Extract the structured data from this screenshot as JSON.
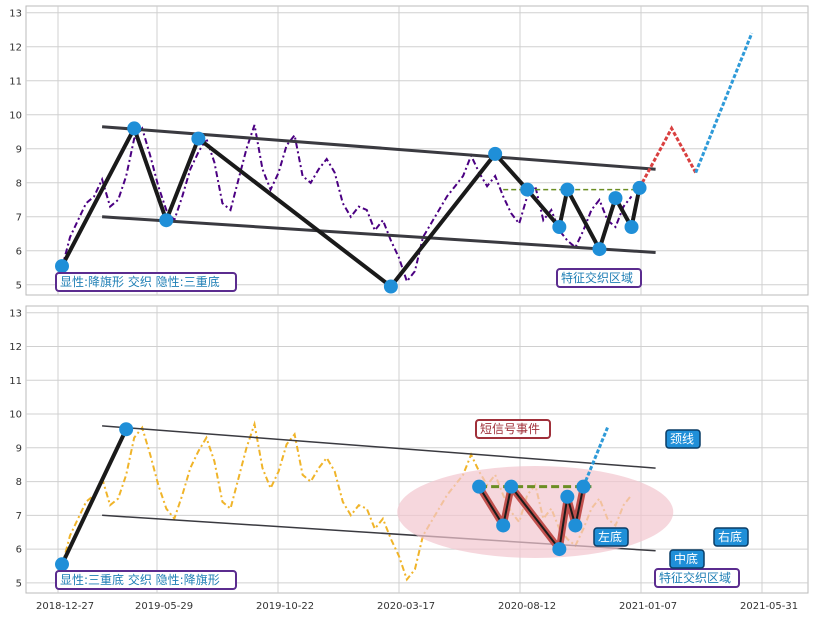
{
  "colors": {
    "panel_bg": "#ffffff",
    "grid": "#d0d0d0",
    "border": "#bbbbbb",
    "series_top": "#4b0082",
    "series_bottom": "#f0b429",
    "pattern_line": "#1a1a1a",
    "channel_line": "#3a3a40",
    "marker": "#1f8fd8",
    "neckline_top": "#6b8e23",
    "neckline_bottom": "#6b8e23",
    "triple_bottom_fill": "#c0504d",
    "projection_up": "#2e9ad8",
    "projection_red": "#d94040",
    "ellipse": "#f2c6cf",
    "label_purple": "#5b2c8f",
    "label_teal": "#1f7fb5",
    "callout_fill": "#1f8fd8",
    "callout_red": "#a0303a"
  },
  "chart_data": [
    {
      "type": "line",
      "panel": "top",
      "ylim": [
        4.7,
        13.2
      ],
      "y_ticks": [
        5,
        6,
        7,
        8,
        9,
        10,
        11,
        12,
        13
      ],
      "x_ticks": [],
      "series": [
        {
          "values": [
            5.5,
            6.4,
            6.9,
            7.4,
            7.6,
            8.1,
            7.3,
            7.5,
            8.2,
            9.3,
            9.6,
            8.8,
            7.9,
            7.2,
            6.9,
            7.6,
            8.4,
            8.9,
            9.3,
            8.6,
            7.4,
            7.2,
            8.1,
            9.0,
            9.7,
            8.4,
            7.8,
            8.3,
            9.1,
            9.4,
            8.2,
            8.0,
            8.4,
            8.7,
            8.3,
            7.4,
            7.0,
            7.3,
            7.2,
            6.6,
            6.9,
            6.3,
            5.8,
            5.1,
            5.4,
            6.4,
            6.8,
            7.2,
            7.6,
            7.9,
            8.2,
            8.8,
            8.3,
            7.9,
            8.2,
            7.6,
            7.1,
            6.8,
            7.6,
            7.9,
            6.9,
            7.2,
            6.6,
            6.3,
            6.1,
            6.6,
            7.2,
            7.5,
            6.9,
            6.7,
            7.3,
            7.6
          ]
        }
      ],
      "pattern": {
        "zigzag": [
          [
            0,
            5.55
          ],
          [
            9,
            9.6
          ],
          [
            13,
            6.9
          ],
          [
            17,
            9.3
          ],
          [
            41,
            4.95
          ],
          [
            54,
            8.85
          ],
          [
            58,
            7.8
          ],
          [
            62,
            6.7
          ],
          [
            63,
            7.8
          ],
          [
            67,
            6.05
          ],
          [
            69,
            7.55
          ],
          [
            71,
            6.7
          ],
          [
            72,
            7.85
          ]
        ],
        "channel_upper": [
          [
            5,
            9.65
          ],
          [
            74,
            8.4
          ]
        ],
        "channel_lower": [
          [
            5,
            7.0
          ],
          [
            74,
            5.95
          ]
        ],
        "neckline": [
          [
            55,
            7.8
          ],
          [
            72,
            7.8
          ]
        ],
        "projection_red": [
          [
            72,
            7.85
          ],
          [
            76,
            9.6
          ],
          [
            79,
            8.3
          ]
        ],
        "projection_blue": [
          [
            79,
            8.3
          ],
          [
            86,
            12.4
          ]
        ],
        "markers": [
          [
            0,
            5.55
          ],
          [
            9,
            9.6
          ],
          [
            13,
            6.9
          ],
          [
            17,
            9.3
          ],
          [
            41,
            4.95
          ],
          [
            54,
            8.85
          ],
          [
            58,
            7.8
          ],
          [
            62,
            6.7
          ],
          [
            63,
            7.8
          ],
          [
            67,
            6.05
          ],
          [
            69,
            7.55
          ],
          [
            71,
            6.7
          ],
          [
            72,
            7.85
          ]
        ]
      },
      "annotations": {
        "bottom_left_label": "显性:降旗形 交织 隐性:三重底",
        "zone_label": "特征交织区域"
      }
    },
    {
      "type": "line",
      "panel": "bottom",
      "ylim": [
        4.7,
        13.2
      ],
      "y_ticks": [
        5,
        6,
        7,
        8,
        9,
        10,
        11,
        12,
        13
      ],
      "x_ticks": [
        "2018-12-27",
        "2019-05-29",
        "2019-10-22",
        "2020-03-17",
        "2020-08-12",
        "2021-01-07",
        "2021-05-31"
      ],
      "series": [
        {
          "values": [
            5.5,
            6.4,
            6.9,
            7.4,
            7.6,
            8.1,
            7.3,
            7.5,
            8.2,
            9.3,
            9.6,
            8.8,
            7.9,
            7.2,
            6.9,
            7.6,
            8.4,
            8.9,
            9.3,
            8.6,
            7.4,
            7.2,
            8.1,
            9.0,
            9.7,
            8.4,
            7.8,
            8.3,
            9.1,
            9.4,
            8.2,
            8.0,
            8.4,
            8.7,
            8.3,
            7.4,
            7.0,
            7.3,
            7.2,
            6.6,
            6.9,
            6.3,
            5.8,
            5.1,
            5.4,
            6.4,
            6.8,
            7.2,
            7.6,
            7.9,
            8.2,
            8.8,
            8.3,
            7.9,
            8.2,
            7.6,
            7.1,
            6.8,
            7.6,
            7.9,
            6.9,
            7.2,
            6.6,
            6.3,
            6.1,
            6.6,
            7.2,
            7.5,
            6.9,
            6.7,
            7.3,
            7.6
          ]
        }
      ],
      "pattern": {
        "bull_leg": [
          [
            0,
            5.55
          ],
          [
            8,
            9.55
          ]
        ],
        "channel_upper": [
          [
            5,
            9.65
          ],
          [
            74,
            8.4
          ]
        ],
        "channel_lower": [
          [
            5,
            7.0
          ],
          [
            74,
            5.95
          ]
        ],
        "triple_bottom": [
          [
            52,
            7.85
          ],
          [
            55,
            6.7
          ],
          [
            56,
            7.85
          ],
          [
            62,
            6.0
          ],
          [
            63,
            7.55
          ],
          [
            64,
            6.7
          ],
          [
            65,
            7.85
          ]
        ],
        "neckline": [
          [
            52,
            7.85
          ],
          [
            66,
            7.85
          ]
        ],
        "projection_blue": [
          [
            65,
            7.85
          ],
          [
            68,
            9.6
          ]
        ],
        "markers": [
          [
            0,
            5.55
          ],
          [
            8,
            9.55
          ],
          [
            52,
            7.85
          ],
          [
            55,
            6.7
          ],
          [
            56,
            7.85
          ],
          [
            62,
            6.0
          ],
          [
            63,
            7.55
          ],
          [
            64,
            6.7
          ],
          [
            65,
            7.85
          ]
        ]
      },
      "annotations": {
        "bottom_left_label": "显性:三重底 交织 隐性:降旗形",
        "signal_label": "短信号事件",
        "neckline_label": "颈线",
        "left_bottom_label": "左底",
        "mid_bottom_label": "中底",
        "right_bottom_label": "右底",
        "zone_label": "特征交织区域"
      }
    }
  ]
}
